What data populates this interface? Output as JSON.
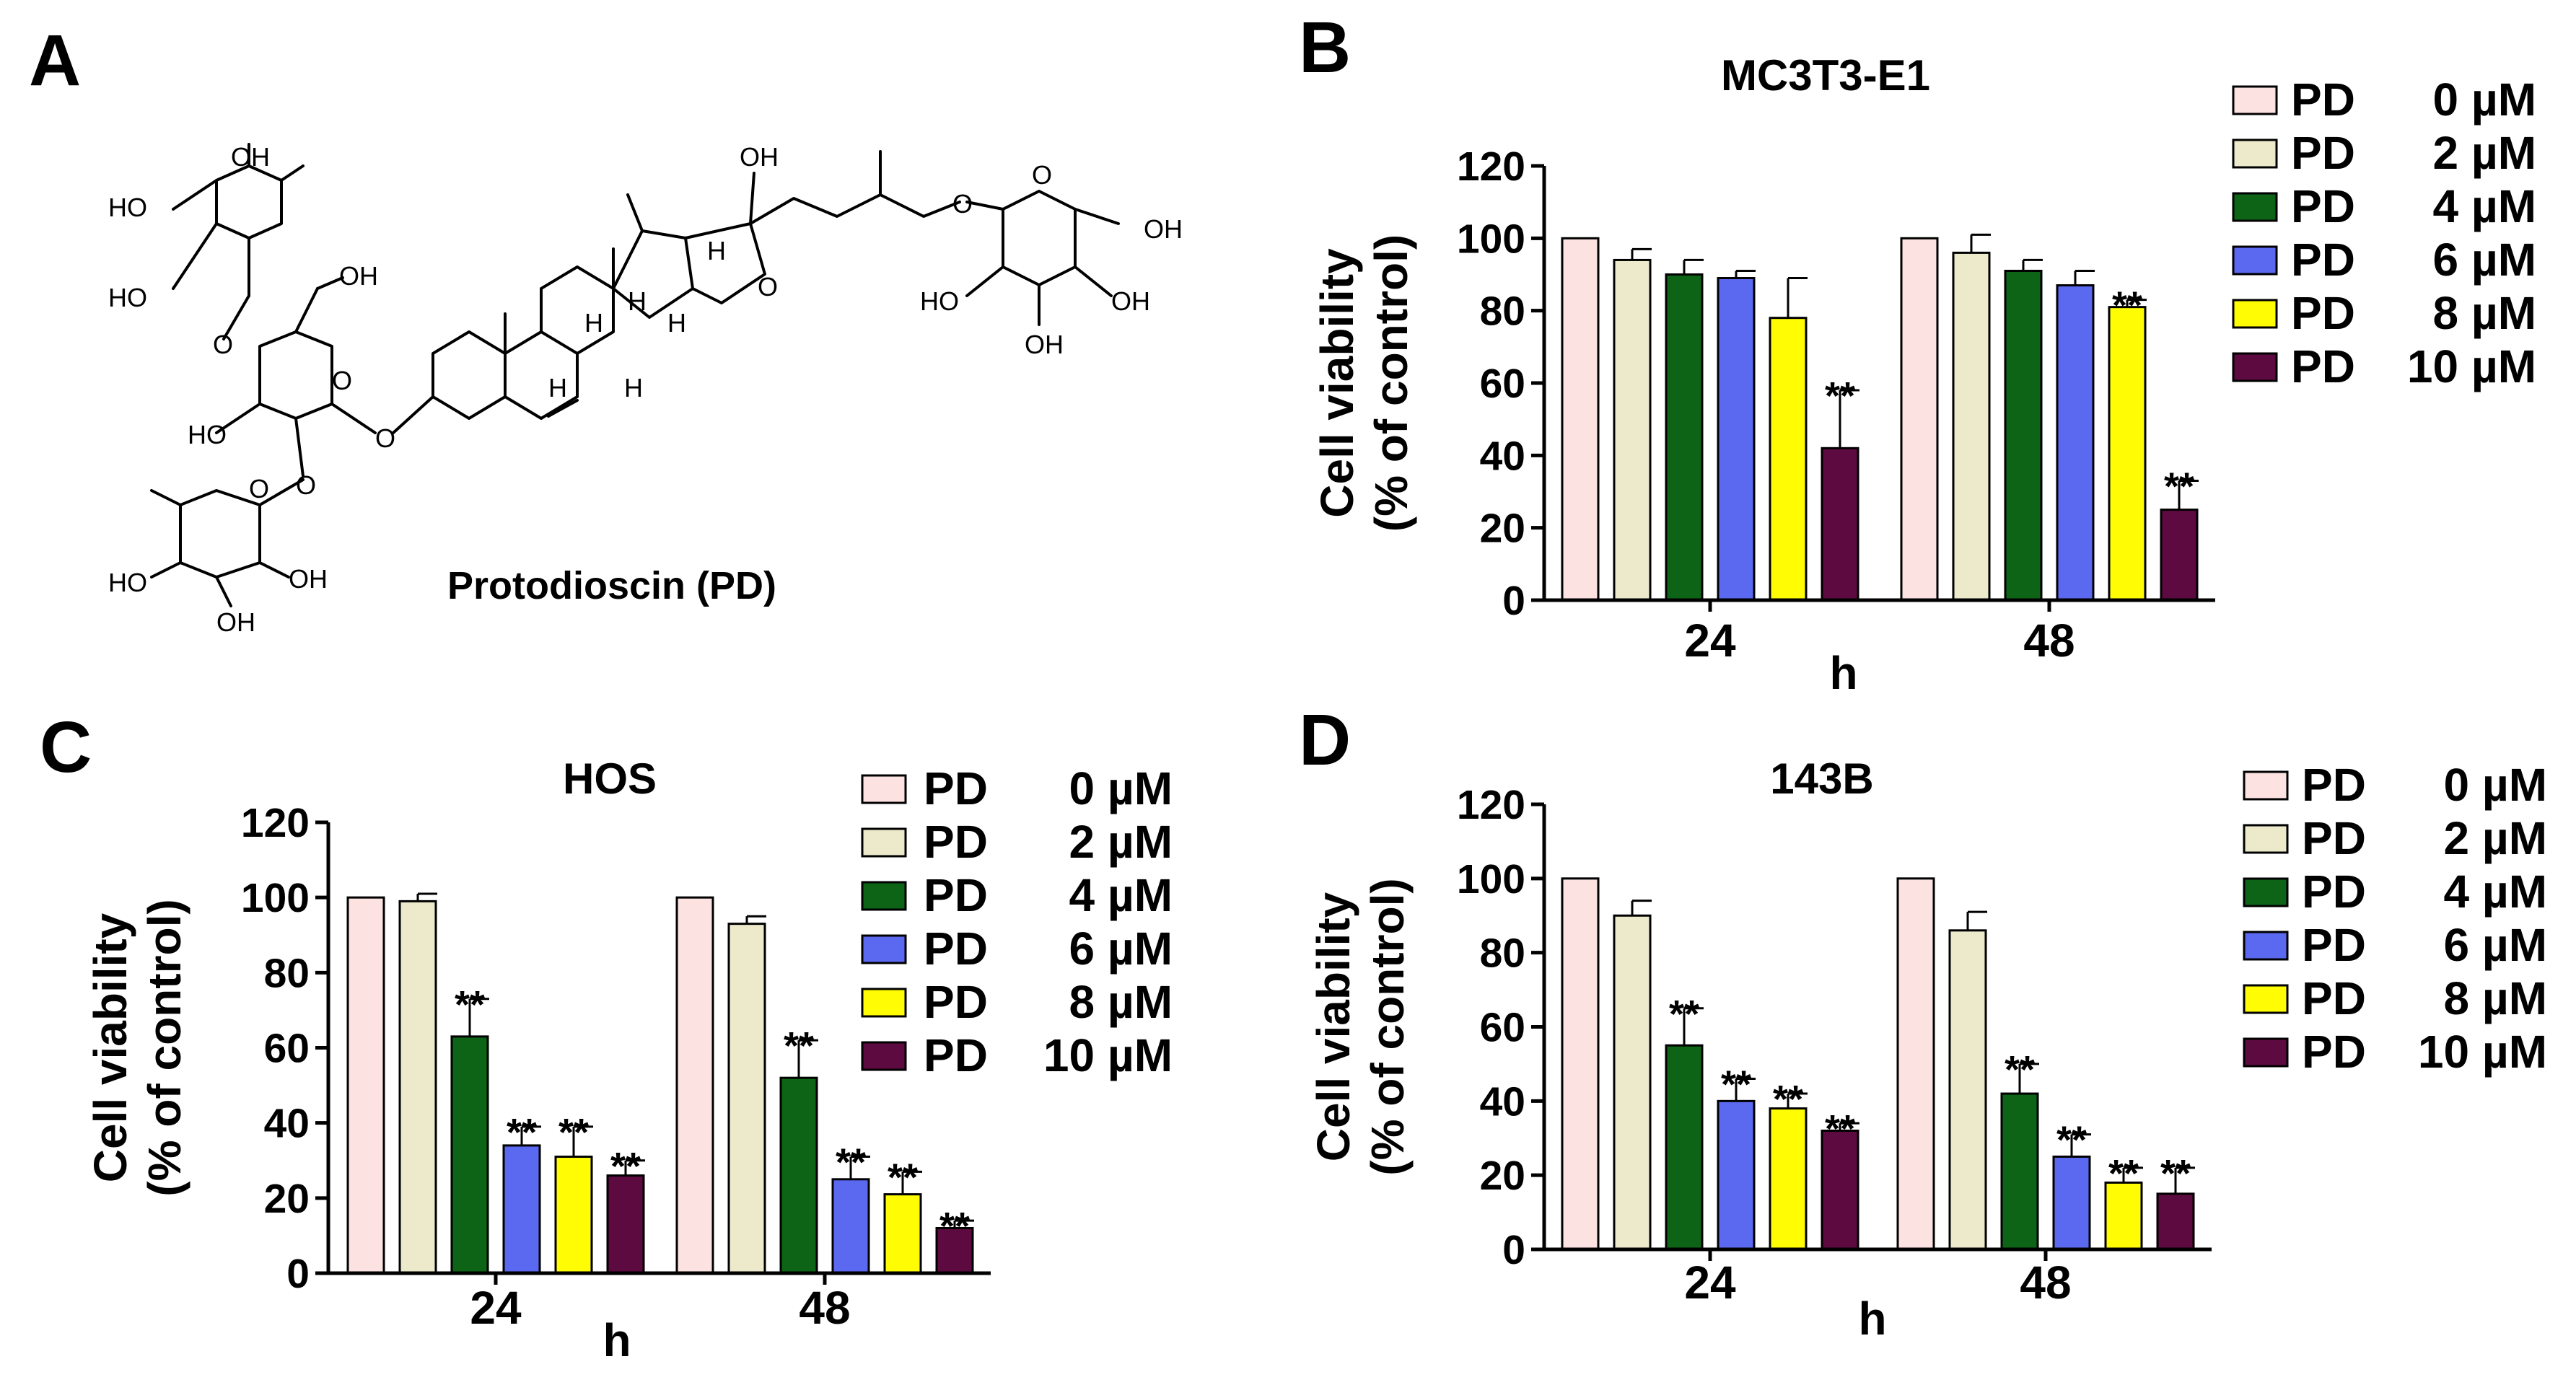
{
  "structure": {
    "panel_label": "A",
    "compound_name": "Protodioscin (PD)",
    "atom_labels": {
      "oh_top": "OH",
      "ho_1": "HO",
      "ho_2": "HO",
      "oh_ch2": "OH",
      "o_link_1": "O",
      "ring_o_1": "O",
      "ho_3": "HO",
      "o_link_2": "O",
      "o_c3": "O",
      "ho_4": "HO",
      "oh_4": "OH",
      "oh_bottom": "OH",
      "ring_o_2": "O",
      "ho_22": "OH",
      "spiro_o": "O",
      "o_link_3": "O",
      "ring_o_3": "O",
      "oh_glc_ch2": "OH",
      "ho_glc": "HO",
      "oh_glc_1": "OH",
      "oh_glc_2": "OH",
      "h_1": "H",
      "h_2": "H",
      "h_3": "H",
      "h_4": "H",
      "h_5": "H",
      "h_6": "H"
    }
  },
  "colors": {
    "PD 0 µM": "#fde2e2",
    "PD 2 µM": "#eceacb",
    "PD 4 µM": "#0d6416",
    "PD 6 µM": "#5b68f0",
    "PD 8 µM": "#fffc03",
    "PD 10 µM": "#5d0a40"
  },
  "chart_data": [
    {
      "panel": "B",
      "type": "bar",
      "title": "MC3T3-E1",
      "xlabel": "h",
      "ylabel": [
        "Cell viability",
        "(% of control)"
      ],
      "ylim": [
        0,
        120
      ],
      "yticks": [
        "0",
        "20",
        "40",
        "60",
        "80",
        "100",
        "120"
      ],
      "categories": [
        "24",
        "48"
      ],
      "legend_position": "right",
      "series": [
        {
          "name": "PD 0 µM",
          "legend_label": [
            "PD",
            "0 µM"
          ],
          "values": [
            100,
            100
          ],
          "errors": [
            0,
            0
          ],
          "sig": [
            "",
            ""
          ]
        },
        {
          "name": "PD 2 µM",
          "legend_label": [
            "PD",
            "2 µM"
          ],
          "values": [
            94,
            96
          ],
          "errors": [
            3,
            5
          ],
          "sig": [
            "",
            ""
          ]
        },
        {
          "name": "PD 4 µM",
          "legend_label": [
            "PD",
            "4 µM"
          ],
          "values": [
            90,
            91
          ],
          "errors": [
            4,
            3
          ],
          "sig": [
            "",
            ""
          ]
        },
        {
          "name": "PD 6 µM",
          "legend_label": [
            "PD",
            "6 µM"
          ],
          "values": [
            89,
            87
          ],
          "errors": [
            2,
            4
          ],
          "sig": [
            "",
            ""
          ]
        },
        {
          "name": "PD 8 µM",
          "legend_label": [
            "PD",
            "8 µM"
          ],
          "values": [
            78,
            81
          ],
          "errors": [
            11,
            2
          ],
          "sig": [
            "",
            "**"
          ]
        },
        {
          "name": "PD 10 µM",
          "legend_label": [
            "PD",
            "10 µM"
          ],
          "values": [
            42,
            25
          ],
          "errors": [
            16,
            8
          ],
          "sig": [
            "**",
            "**"
          ]
        }
      ]
    },
    {
      "panel": "C",
      "type": "bar",
      "title": "HOS",
      "xlabel": "h",
      "ylabel": [
        "Cell viability",
        "(% of control)"
      ],
      "ylim": [
        0,
        120
      ],
      "yticks": [
        "0",
        "20",
        "40",
        "60",
        "80",
        "100",
        "120"
      ],
      "categories": [
        "24",
        "48"
      ],
      "legend_position": "top-right",
      "series": [
        {
          "name": "PD 0 µM",
          "legend_label": [
            "PD",
            "0 µM"
          ],
          "values": [
            100,
            100
          ],
          "errors": [
            0,
            0
          ],
          "sig": [
            "",
            ""
          ]
        },
        {
          "name": "PD 2 µM",
          "legend_label": [
            "PD",
            "2 µM"
          ],
          "values": [
            99,
            93
          ],
          "errors": [
            2,
            2
          ],
          "sig": [
            "",
            ""
          ]
        },
        {
          "name": "PD 4 µM",
          "legend_label": [
            "PD",
            "4 µM"
          ],
          "values": [
            63,
            52
          ],
          "errors": [
            10,
            10
          ],
          "sig": [
            "**",
            "**"
          ]
        },
        {
          "name": "PD 6 µM",
          "legend_label": [
            "PD",
            "6 µM"
          ],
          "values": [
            34,
            25
          ],
          "errors": [
            5,
            6
          ],
          "sig": [
            "**",
            "**"
          ]
        },
        {
          "name": "PD 8 µM",
          "legend_label": [
            "PD",
            "8 µM"
          ],
          "values": [
            31,
            21
          ],
          "errors": [
            8,
            6
          ],
          "sig": [
            "**",
            "**"
          ]
        },
        {
          "name": "PD 10 µM",
          "legend_label": [
            "PD",
            "10 µM"
          ],
          "values": [
            26,
            12
          ],
          "errors": [
            4,
            2
          ],
          "sig": [
            "**",
            "**"
          ]
        }
      ]
    },
    {
      "panel": "D",
      "type": "bar",
      "title": "143B",
      "xlabel": "h",
      "ylabel": [
        "Cell viability",
        "(% of control)"
      ],
      "ylim": [
        0,
        120
      ],
      "yticks": [
        "0",
        "20",
        "40",
        "60",
        "80",
        "100",
        "120"
      ],
      "categories": [
        "24",
        "48"
      ],
      "legend_position": "right",
      "series": [
        {
          "name": "PD 0 µM",
          "legend_label": [
            "PD",
            "0 µM"
          ],
          "values": [
            100,
            100
          ],
          "errors": [
            0,
            0
          ],
          "sig": [
            "",
            ""
          ]
        },
        {
          "name": "PD 2 µM",
          "legend_label": [
            "PD",
            "2 µM"
          ],
          "values": [
            90,
            86
          ],
          "errors": [
            4,
            5
          ],
          "sig": [
            "",
            ""
          ]
        },
        {
          "name": "PD 4 µM",
          "legend_label": [
            "PD",
            "4 µM"
          ],
          "values": [
            55,
            42
          ],
          "errors": [
            10,
            8
          ],
          "sig": [
            "**",
            "**"
          ]
        },
        {
          "name": "PD 6 µM",
          "legend_label": [
            "PD",
            "6 µM"
          ],
          "values": [
            40,
            25
          ],
          "errors": [
            6,
            6
          ],
          "sig": [
            "**",
            "**"
          ]
        },
        {
          "name": "PD 8 µM",
          "legend_label": [
            "PD",
            "8 µM"
          ],
          "values": [
            38,
            18
          ],
          "errors": [
            4,
            4
          ],
          "sig": [
            "**",
            "**"
          ]
        },
        {
          "name": "PD 10 µM",
          "legend_label": [
            "PD",
            "10 µM"
          ],
          "values": [
            32,
            15
          ],
          "errors": [
            2,
            7
          ],
          "sig": [
            "**",
            "**"
          ]
        }
      ]
    }
  ]
}
